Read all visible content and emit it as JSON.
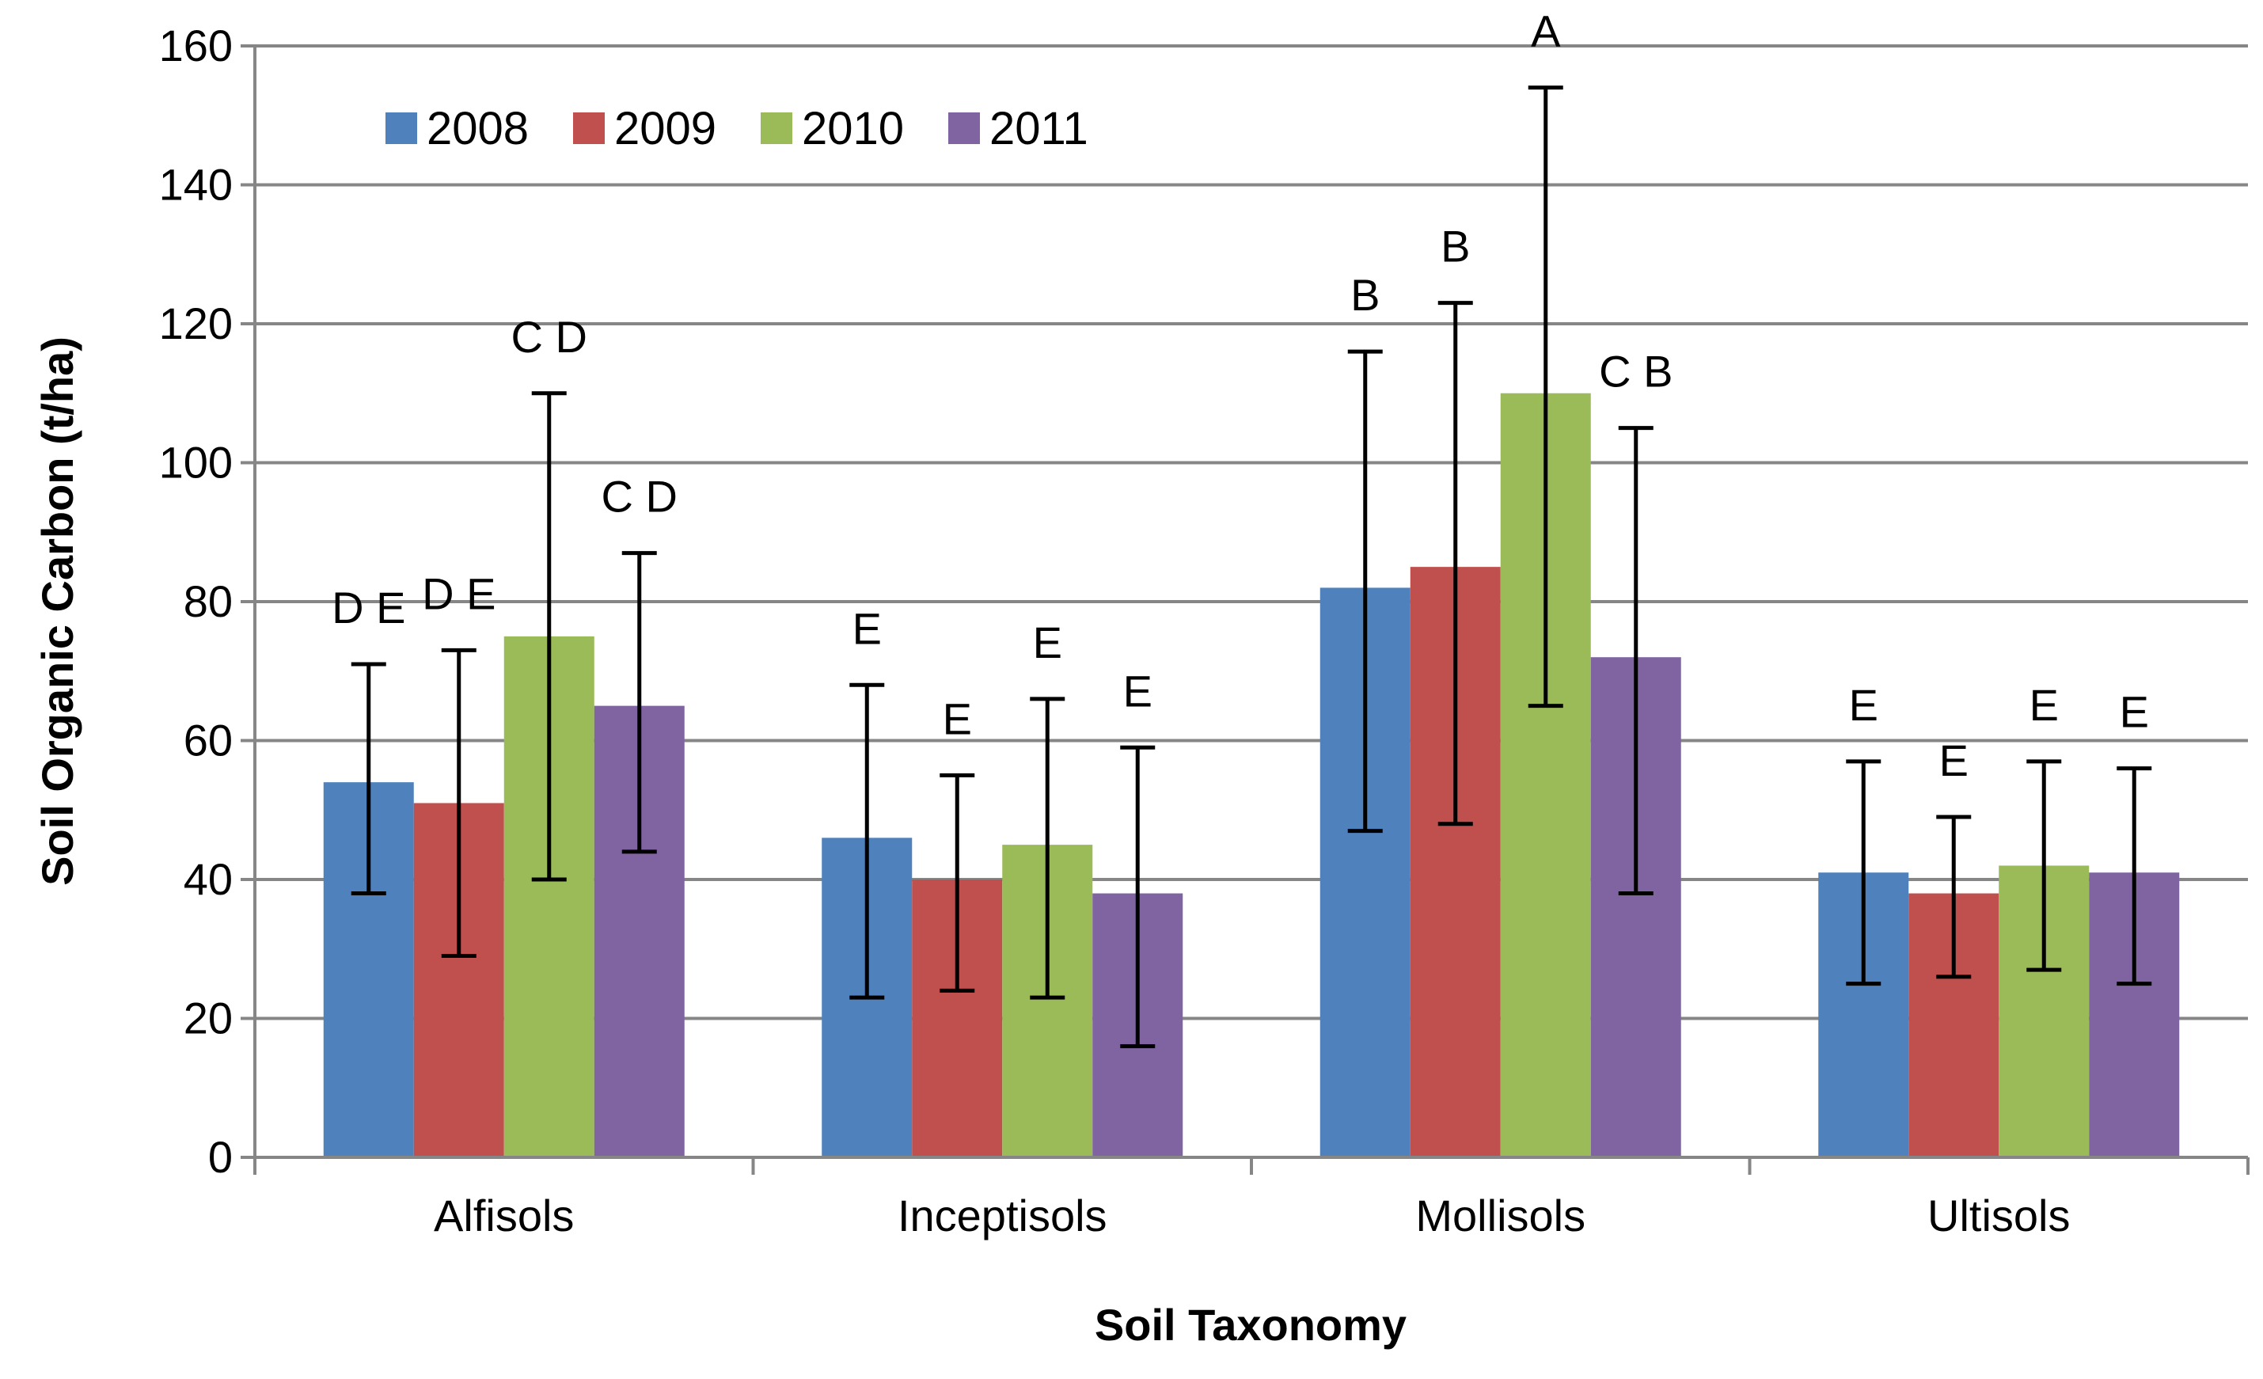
{
  "chart_data": {
    "type": "bar",
    "title": "",
    "xlabel": "Soil Taxonomy",
    "ylabel": "Soil Organic Carbon (t/ha)",
    "ylim": [
      0,
      160
    ],
    "yticks": [
      0,
      20,
      40,
      60,
      80,
      100,
      120,
      140,
      160
    ],
    "grid": true,
    "legend_position": "top-left",
    "categories": [
      "Alfisols",
      "Inceptisols",
      "Mollisols",
      "Ultisols"
    ],
    "series": [
      {
        "name": "2008",
        "color": "#4f81bd",
        "values": [
          54,
          46,
          82,
          41
        ],
        "error_low": [
          38,
          23,
          47,
          25
        ],
        "error_high": [
          71,
          68,
          116,
          57
        ],
        "letters": [
          "D E",
          "E",
          "B",
          "E"
        ]
      },
      {
        "name": "2009",
        "color": "#c0504d",
        "values": [
          51,
          40,
          85,
          38
        ],
        "error_low": [
          29,
          24,
          48,
          26
        ],
        "error_high": [
          73,
          55,
          123,
          49
        ],
        "letters": [
          "D E",
          "E",
          "B",
          "E"
        ]
      },
      {
        "name": "2010",
        "color": "#9bbb59",
        "values": [
          75,
          45,
          110,
          42
        ],
        "error_low": [
          40,
          23,
          65,
          27
        ],
        "error_high": [
          110,
          66,
          154,
          57
        ],
        "letters": [
          "C D",
          "E",
          "A",
          "E"
        ]
      },
      {
        "name": "2011",
        "color": "#8064a2",
        "values": [
          65,
          38,
          72,
          41
        ],
        "error_low": [
          44,
          16,
          38,
          25
        ],
        "error_high": [
          87,
          59,
          105,
          56
        ],
        "letters": [
          "C D",
          "E",
          "C B",
          "E"
        ]
      }
    ]
  }
}
